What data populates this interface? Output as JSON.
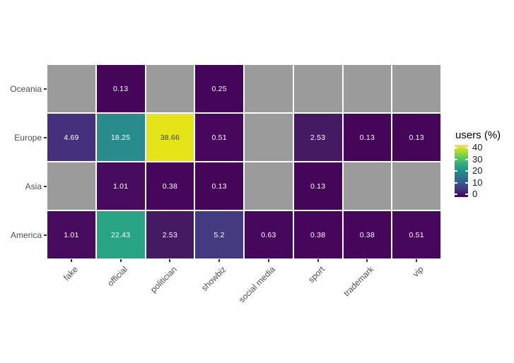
{
  "chart_data": {
    "type": "heatmap",
    "legend": {
      "title": "users (%)",
      "ticks": [
        40,
        30,
        20,
        10,
        0
      ],
      "gradient_stops": [
        "#440154",
        "#472d7b",
        "#3b528b",
        "#2c728e",
        "#21908c",
        "#27ad81",
        "#5dc863",
        "#aadc32",
        "#fde725"
      ]
    },
    "rows": [
      "Oceania",
      "Europe",
      "Asia",
      "America"
    ],
    "columns": [
      "fake",
      "official",
      "politician",
      "showbiz",
      "social media",
      "sport",
      "trademark",
      "vip"
    ],
    "values": [
      [
        null,
        0.13,
        null,
        0.25,
        null,
        null,
        null,
        null
      ],
      [
        4.69,
        18.25,
        38.66,
        0.51,
        null,
        2.53,
        0.13,
        0.13
      ],
      [
        null,
        1.01,
        0.38,
        0.13,
        null,
        0.13,
        null,
        null
      ],
      [
        1.01,
        22.43,
        2.53,
        5.2,
        0.63,
        0.38,
        0.38,
        0.51
      ]
    ],
    "cell_labels": [
      [
        "",
        "0.13",
        "",
        "0.25",
        "",
        "",
        "",
        ""
      ],
      [
        "4.69",
        "18.25",
        "38.66",
        "0.51",
        "",
        "2.53",
        "0.13",
        "0.13"
      ],
      [
        "",
        "1.01",
        "0.38",
        "0.13",
        "",
        "0.13",
        "",
        ""
      ],
      [
        "1.01",
        "22.43",
        "2.53",
        "5.2",
        "0.63",
        "0.38",
        "0.38",
        "0.51"
      ]
    ],
    "cell_colors": [
      [
        null,
        "#450559",
        null,
        "#45055a",
        null,
        null,
        null,
        null
      ],
      [
        "#45307d",
        "#2a8b8c",
        "#e5e419",
        "#46075c",
        null,
        "#461a63",
        "#450559",
        "#450559"
      ],
      [
        null,
        "#470b60",
        "#45065b",
        "#450559",
        null,
        "#450559",
        null,
        null
      ],
      [
        "#470b60",
        "#28a384",
        "#461a63",
        "#443a80",
        "#46085d",
        "#45065b",
        "#45065b",
        "#46075c"
      ]
    ],
    "na_color": "#9b9b9b",
    "x_label_angle": 45,
    "colors": {
      "axis_text": "#4d4d4d",
      "tick_mark": "#333333",
      "cell_label_light": "#ffffff",
      "cell_label_dark": "#333333",
      "legend_text": "#1a1a1a",
      "background": "#ffffff"
    }
  }
}
